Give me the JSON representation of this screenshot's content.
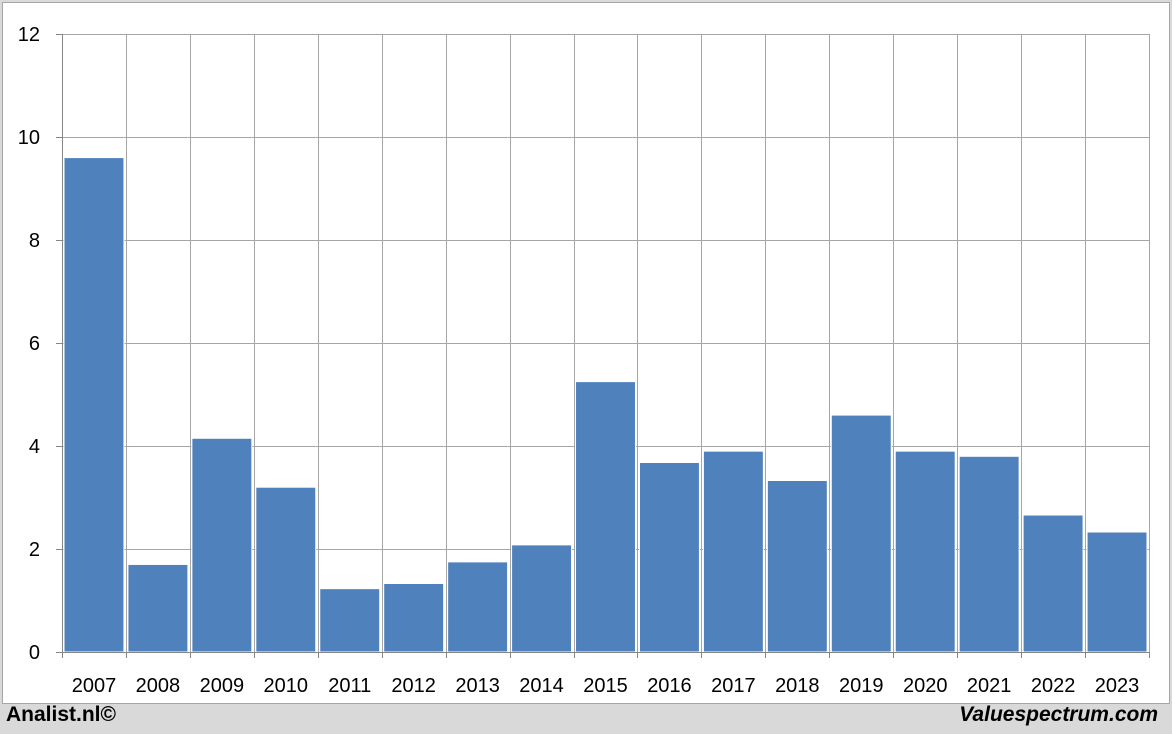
{
  "chart_data": {
    "type": "bar",
    "categories": [
      "2007",
      "2008",
      "2009",
      "2010",
      "2011",
      "2012",
      "2013",
      "2014",
      "2015",
      "2016",
      "2017",
      "2018",
      "2019",
      "2020",
      "2021",
      "2022",
      "2023"
    ],
    "values": [
      9.6,
      1.7,
      4.15,
      3.2,
      1.23,
      1.33,
      1.75,
      2.08,
      5.25,
      3.68,
      3.9,
      3.33,
      4.6,
      3.9,
      3.8,
      2.66,
      2.33
    ],
    "title": "",
    "xlabel": "",
    "ylabel": "",
    "ylim": [
      0,
      12
    ],
    "yticks": [
      0,
      2,
      4,
      6,
      8,
      10,
      12
    ],
    "grid": true,
    "bar_color": "#4f81bd",
    "grid_color": "#a6a6a6"
  },
  "footer": {
    "left_credit": "Analist.nl©",
    "right_credit": "Valuespectrum.com"
  }
}
